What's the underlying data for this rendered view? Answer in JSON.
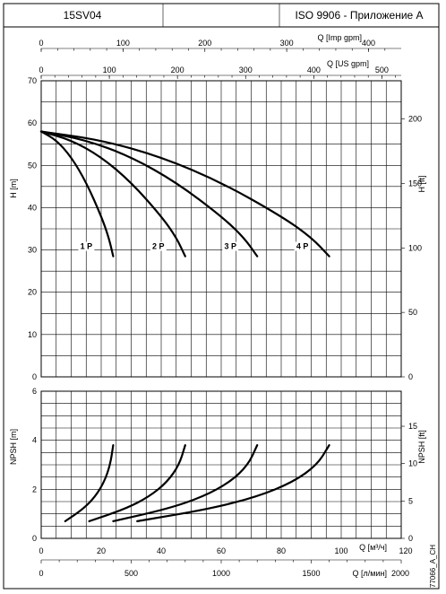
{
  "header": {
    "model": "15SV04",
    "standard": "ISO 9906 - Приложение A"
  },
  "side_code": "77066_A_CH",
  "chart_data": [
    {
      "type": "line",
      "xlabel": "Q [м³/ч]",
      "ylabel_left": "H [m]",
      "ylabel_right": "H [ft]",
      "xlim": [
        0,
        120
      ],
      "ylim": [
        0,
        70
      ],
      "x_ticks": [
        0,
        20,
        40,
        60,
        80,
        100,
        120
      ],
      "y_ticks": [
        0,
        10,
        20,
        30,
        40,
        50,
        60,
        70
      ],
      "y2_ticks": [
        0,
        50,
        100,
        150,
        200
      ],
      "top_axes": [
        {
          "label": "Q [Imp gpm]",
          "ticks": [
            0,
            100,
            200,
            300,
            400
          ]
        },
        {
          "label": "Q [US gpm]",
          "ticks": [
            0,
            100,
            200,
            300,
            400,
            500
          ]
        }
      ],
      "grid": true,
      "series": [
        {
          "name": "1 P",
          "x": [
            0,
            5,
            10,
            15,
            20,
            22.5,
            24
          ],
          "y": [
            58,
            56,
            52,
            46,
            38,
            33,
            28.5
          ]
        },
        {
          "name": "2 P",
          "x": [
            0,
            10,
            20,
            30,
            40,
            45,
            48
          ],
          "y": [
            58,
            56,
            52,
            46,
            38,
            33,
            28.5
          ]
        },
        {
          "name": "3 P",
          "x": [
            0,
            15,
            30,
            45,
            60,
            67.5,
            72
          ],
          "y": [
            58,
            56,
            52,
            46,
            38,
            33,
            28.5
          ]
        },
        {
          "name": "4 P",
          "x": [
            0,
            20,
            40,
            60,
            80,
            90,
            96
          ],
          "y": [
            58,
            56,
            52,
            46,
            38,
            33,
            28.5
          ]
        }
      ]
    },
    {
      "type": "line",
      "xlabel": "Q [м³/ч]",
      "x2label": "Q [л/мин]",
      "ylabel_left": "NPSH [m]",
      "ylabel_right": "NPSH [ft]",
      "xlim": [
        0,
        120
      ],
      "ylim": [
        0,
        6
      ],
      "x_ticks": [
        0,
        20,
        40,
        60,
        80,
        100,
        120
      ],
      "x2_ticks": [
        0,
        500,
        1000,
        1500,
        2000
      ],
      "y_ticks": [
        0,
        2,
        4,
        6
      ],
      "y2_ticks": [
        0,
        5,
        10,
        15
      ],
      "grid": true,
      "series": [
        {
          "x": [
            8,
            14,
            18,
            21,
            23,
            24
          ],
          "y": [
            0.7,
            1.2,
            1.7,
            2.3,
            3.0,
            3.8
          ]
        },
        {
          "x": [
            16,
            28,
            36,
            42,
            46,
            48
          ],
          "y": [
            0.7,
            1.2,
            1.7,
            2.3,
            3.0,
            3.8
          ]
        },
        {
          "x": [
            24,
            42,
            54,
            63,
            69,
            72
          ],
          "y": [
            0.7,
            1.2,
            1.7,
            2.3,
            3.0,
            3.8
          ]
        },
        {
          "x": [
            32,
            56,
            72,
            84,
            92,
            96
          ],
          "y": [
            0.7,
            1.2,
            1.7,
            2.3,
            3.0,
            3.8
          ]
        }
      ]
    }
  ]
}
